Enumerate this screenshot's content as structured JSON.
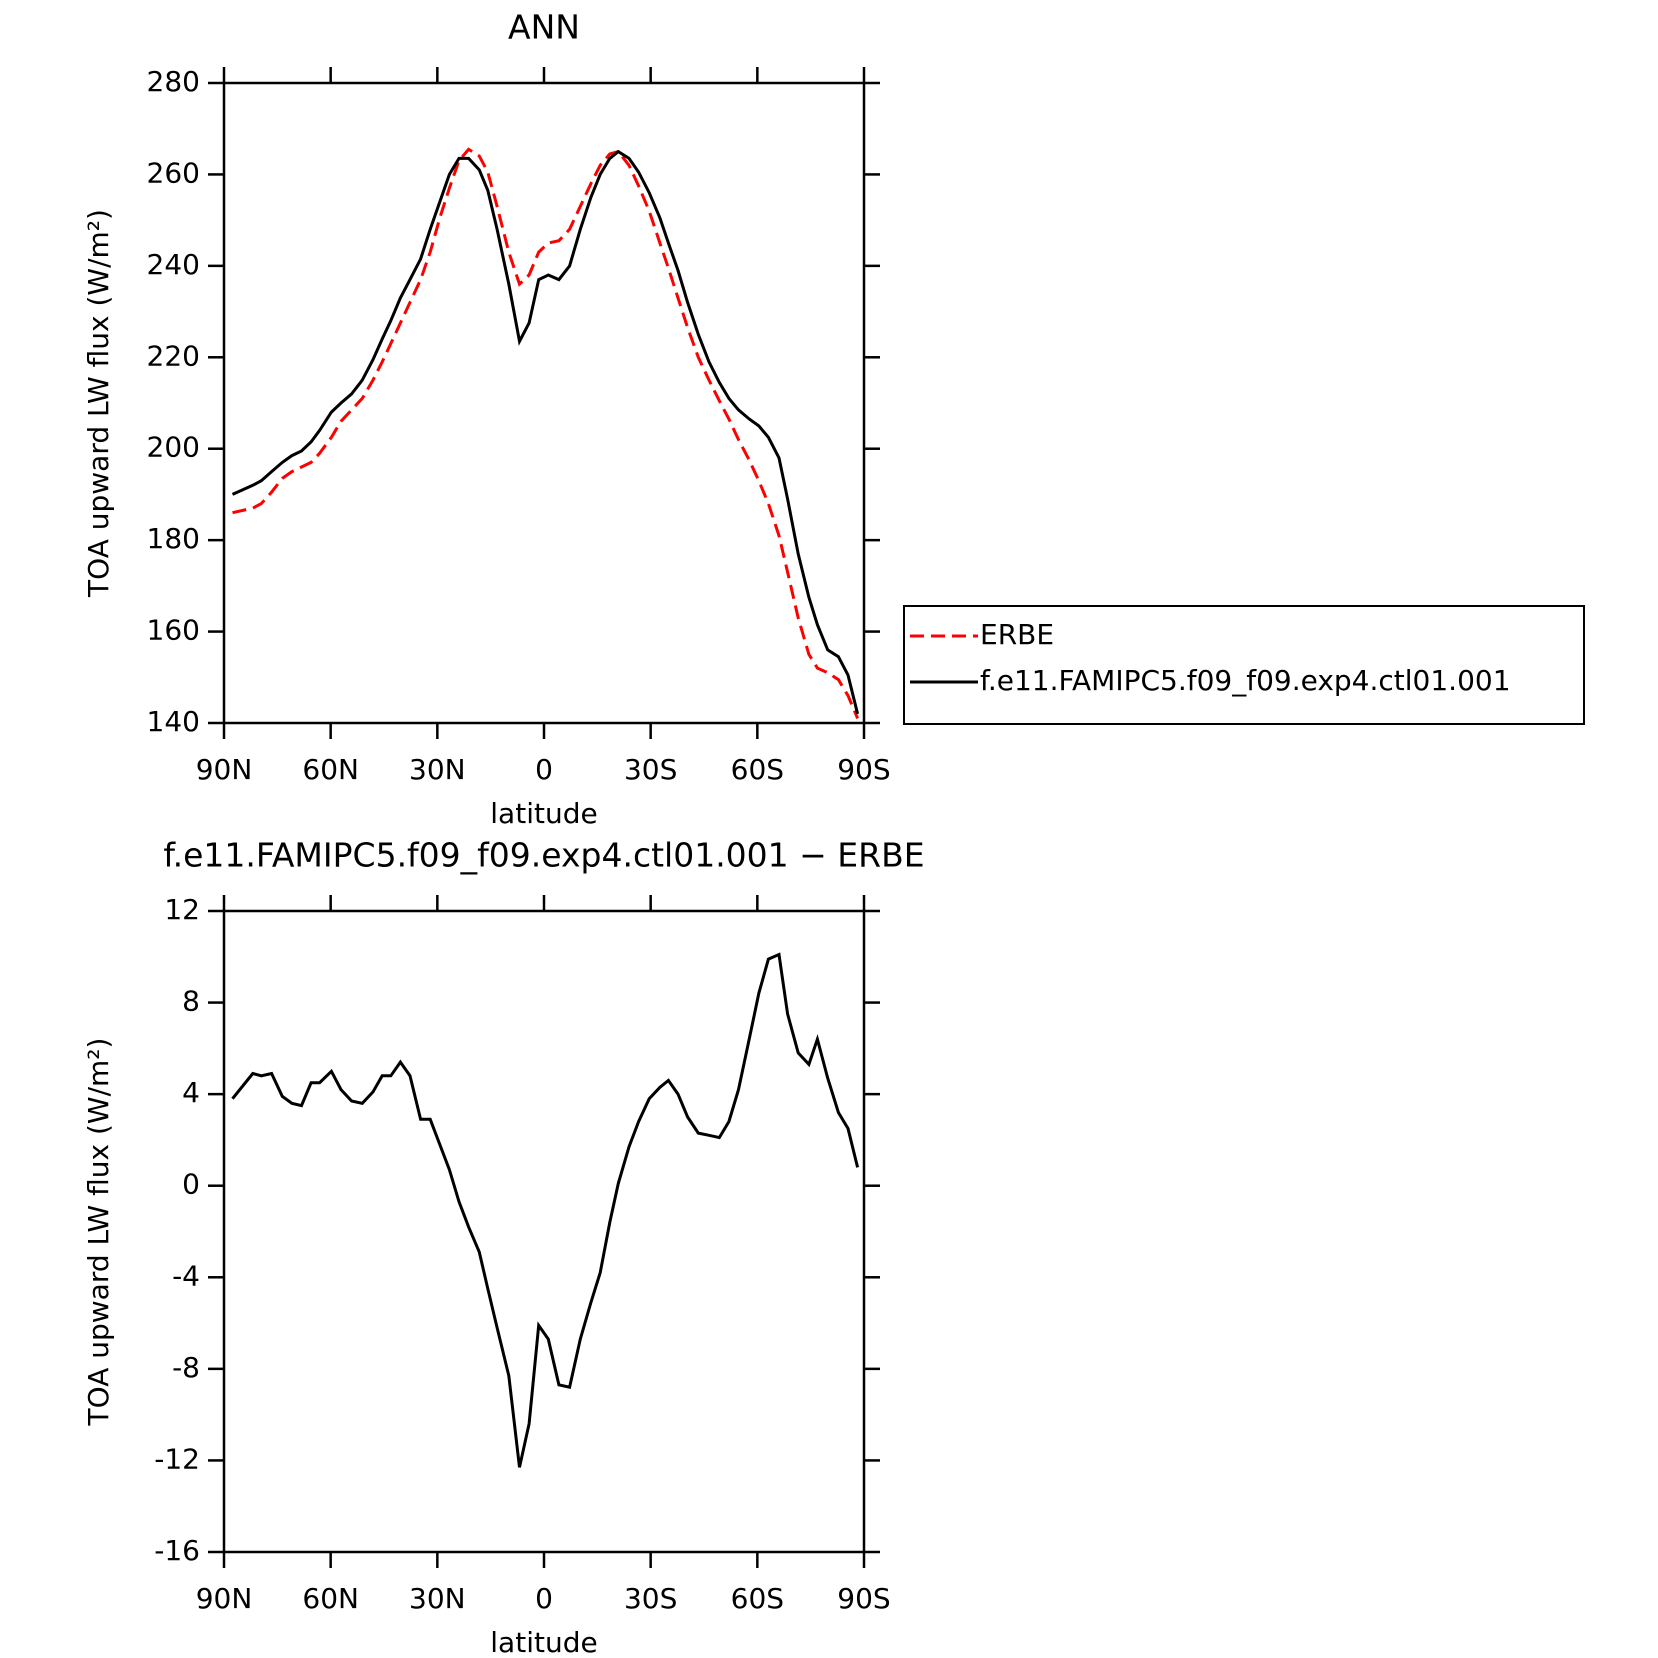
{
  "chart_data": [
    {
      "type": "line",
      "title": "ANN",
      "xlabel": "latitude",
      "ylabel": "TOA upward LW flux (W/m²)",
      "x": [
        87.6,
        81.9,
        79.5,
        76.6,
        73.6,
        70.9,
        68.2,
        65.5,
        63.1,
        59.8,
        57.1,
        54.1,
        51.1,
        48.1,
        45.5,
        43.1,
        40.4,
        37.7,
        34.7,
        32.0,
        29.3,
        26.6,
        23.9,
        21.2,
        18.2,
        15.8,
        13.2,
        9.9,
        6.9,
        4.2,
        1.5,
        -1.2,
        -4.2,
        -7.2,
        -10.2,
        -13.2,
        -15.8,
        -18.5,
        -20.9,
        -23.9,
        -26.6,
        -29.6,
        -32.6,
        -35.0,
        -37.7,
        -40.4,
        -43.4,
        -46.4,
        -49.3,
        -52.0,
        -54.7,
        -57.7,
        -60.4,
        -63.1,
        -66.1,
        -68.5,
        -71.5,
        -74.5,
        -76.9,
        -79.8,
        -82.8,
        -85.5,
        -88.2
      ],
      "series": [
        {
          "name": "ERBE",
          "color": "#ff0000",
          "line_style": "dashed",
          "values": [
            186,
            187,
            188,
            190.5,
            193.5,
            195,
            196,
            197,
            199,
            202.5,
            206,
            208.5,
            211,
            215,
            219,
            223,
            227.5,
            232,
            237,
            243,
            250.5,
            257,
            263,
            265.5,
            264,
            260.5,
            253,
            243,
            236,
            238,
            243,
            245,
            245.5,
            248,
            253,
            258,
            262,
            264.5,
            265,
            262,
            257.5,
            252,
            245,
            239.5,
            233,
            226.5,
            220,
            215,
            210.5,
            206.5,
            202,
            197.5,
            193,
            188,
            181,
            173,
            163,
            155,
            152,
            151,
            149.5,
            146,
            141
          ]
        },
        {
          "name": "f.e11.FAMIPC5.f09_f09.exp4.ctl01.001",
          "color": "#000000",
          "line_style": "solid",
          "values": [
            190,
            192,
            193,
            195,
            197,
            198.5,
            199.5,
            201.5,
            204,
            208,
            210,
            212,
            215,
            219.5,
            224,
            228,
            233,
            237,
            241.5,
            248,
            254,
            260,
            263.5,
            263.5,
            261,
            256.5,
            248,
            236,
            223.5,
            227.5,
            237,
            238,
            237,
            240,
            248,
            255,
            260,
            263.5,
            265,
            263.5,
            260.5,
            256,
            250.5,
            245,
            239,
            232,
            225,
            219,
            214.5,
            211,
            208.5,
            206.5,
            205,
            202.5,
            198,
            189,
            177,
            167.5,
            161.5,
            156,
            154.5,
            150.5,
            142
          ]
        }
      ],
      "xlim": [
        90,
        -90
      ],
      "xticks": [
        {
          "value": 90,
          "label": "90N"
        },
        {
          "value": 60,
          "label": "60N"
        },
        {
          "value": 30,
          "label": "30N"
        },
        0,
        {
          "value": -30,
          "label": "30S"
        },
        {
          "value": -60,
          "label": "60S"
        },
        {
          "value": -90,
          "label": "90S"
        }
      ],
      "ylim": [
        140,
        280
      ],
      "yticks": [
        140,
        160,
        180,
        200,
        220,
        240,
        260,
        280
      ],
      "legend": "right"
    },
    {
      "type": "line",
      "title": "f.e11.FAMIPC5.f09_f09.exp4.ctl01.001 − ERBE",
      "xlabel": "latitude",
      "ylabel": "TOA upward LW flux (W/m²)",
      "x": [
        87.6,
        81.9,
        79.5,
        76.6,
        73.6,
        70.9,
        68.2,
        65.5,
        63.1,
        59.8,
        57.1,
        54.1,
        51.1,
        48.1,
        45.5,
        43.1,
        40.4,
        37.7,
        34.7,
        32.0,
        29.3,
        26.6,
        23.9,
        21.2,
        18.2,
        15.8,
        13.2,
        9.9,
        6.9,
        4.2,
        1.5,
        -1.2,
        -4.2,
        -7.2,
        -10.2,
        -13.2,
        -15.8,
        -18.5,
        -20.9,
        -23.9,
        -26.6,
        -29.6,
        -32.6,
        -35.0,
        -37.7,
        -40.4,
        -43.4,
        -46.4,
        -49.3,
        -52.0,
        -54.7,
        -57.7,
        -60.4,
        -63.1,
        -66.1,
        -68.5,
        -71.5,
        -74.5,
        -76.9,
        -79.8,
        -82.8,
        -85.5,
        -88.2
      ],
      "series": [
        {
          "color": "#000000",
          "line_style": "solid",
          "values": [
            3.8,
            4.9,
            4.8,
            4.9,
            3.9,
            3.6,
            3.5,
            4.5,
            4.5,
            5.0,
            4.2,
            3.7,
            3.6,
            4.1,
            4.8,
            4.8,
            5.4,
            4.8,
            2.9,
            2.9,
            1.8,
            0.7,
            -0.7,
            -1.8,
            -2.9,
            -4.5,
            -6.2,
            -8.3,
            -12.3,
            -10.4,
            -6.1,
            -6.7,
            -8.7,
            -8.8,
            -6.7,
            -5.1,
            -3.8,
            -1.6,
            0.1,
            1.7,
            2.8,
            3.8,
            4.3,
            4.6,
            4.0,
            3.0,
            2.3,
            2.2,
            2.1,
            2.8,
            4.2,
            6.4,
            8.4,
            9.9,
            10.1,
            7.5,
            5.8,
            5.3,
            6.4,
            4.7,
            3.2,
            2.5,
            0.8
          ]
        }
      ],
      "xlim": [
        90,
        -90
      ],
      "xticks": [
        {
          "value": 90,
          "label": "90N"
        },
        {
          "value": 60,
          "label": "60N"
        },
        {
          "value": 30,
          "label": "30N"
        },
        0,
        {
          "value": -30,
          "label": "30S"
        },
        {
          "value": -60,
          "label": "60S"
        },
        {
          "value": -90,
          "label": "90S"
        }
      ],
      "ylim": [
        -16,
        12
      ],
      "yticks": [
        -16,
        -12,
        -8,
        -4,
        0,
        4,
        8,
        12
      ]
    }
  ]
}
